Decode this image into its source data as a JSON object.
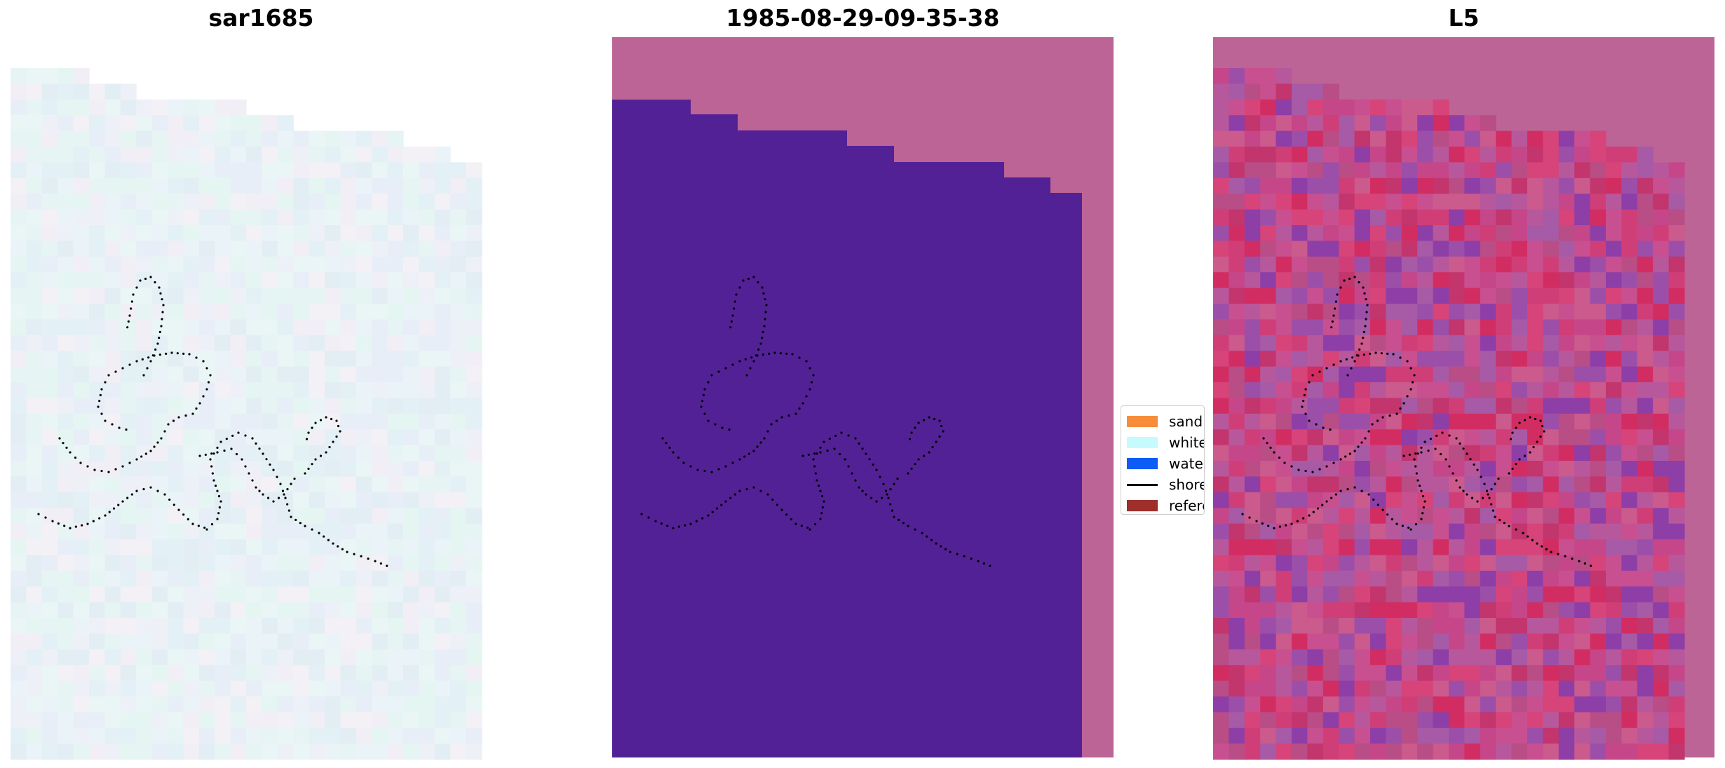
{
  "panels": [
    {
      "title": "sar1685"
    },
    {
      "title": "1985-08-29-09-35-38"
    },
    {
      "title": "L5"
    }
  ],
  "legend": {
    "items": [
      {
        "label": "sand",
        "color": "#f78d3b",
        "kind": "patch"
      },
      {
        "label": "whitewater",
        "color": "#c6fbfd",
        "kind": "patch"
      },
      {
        "label": "water",
        "color": "#0c5cf5",
        "kind": "patch"
      },
      {
        "label": "shoreline",
        "color": "#000000",
        "kind": "line"
      },
      {
        "label": "reference",
        "color": "#9e2f2b",
        "kind": "patch"
      }
    ]
  },
  "colors": {
    "classified_background": "#bc6496",
    "classified_land": "#532196",
    "rgb_base": "#e8f1f5",
    "ndwi_base": "#c6468a",
    "shoreline_points": "#000000"
  }
}
